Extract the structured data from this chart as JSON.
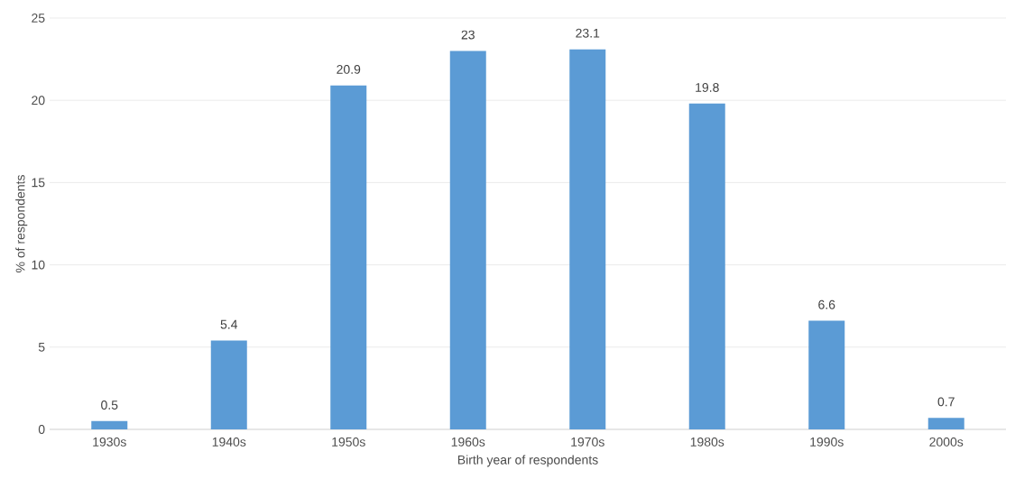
{
  "chart_data": {
    "type": "bar",
    "xlabel": "Birth year of respondents",
    "ylabel": "% of respondents",
    "categories": [
      "1930s",
      "1940s",
      "1950s",
      "1960s",
      "1970s",
      "1980s",
      "1990s",
      "2000s"
    ],
    "values": [
      0.5,
      5.4,
      20.9,
      23,
      23.1,
      19.8,
      6.6,
      0.7
    ],
    "color": "#5b9bd5",
    "ylim": [
      0,
      25
    ],
    "yticks": [
      0,
      5,
      10,
      15,
      20,
      25
    ],
    "grid": "y",
    "data_labels": true
  }
}
